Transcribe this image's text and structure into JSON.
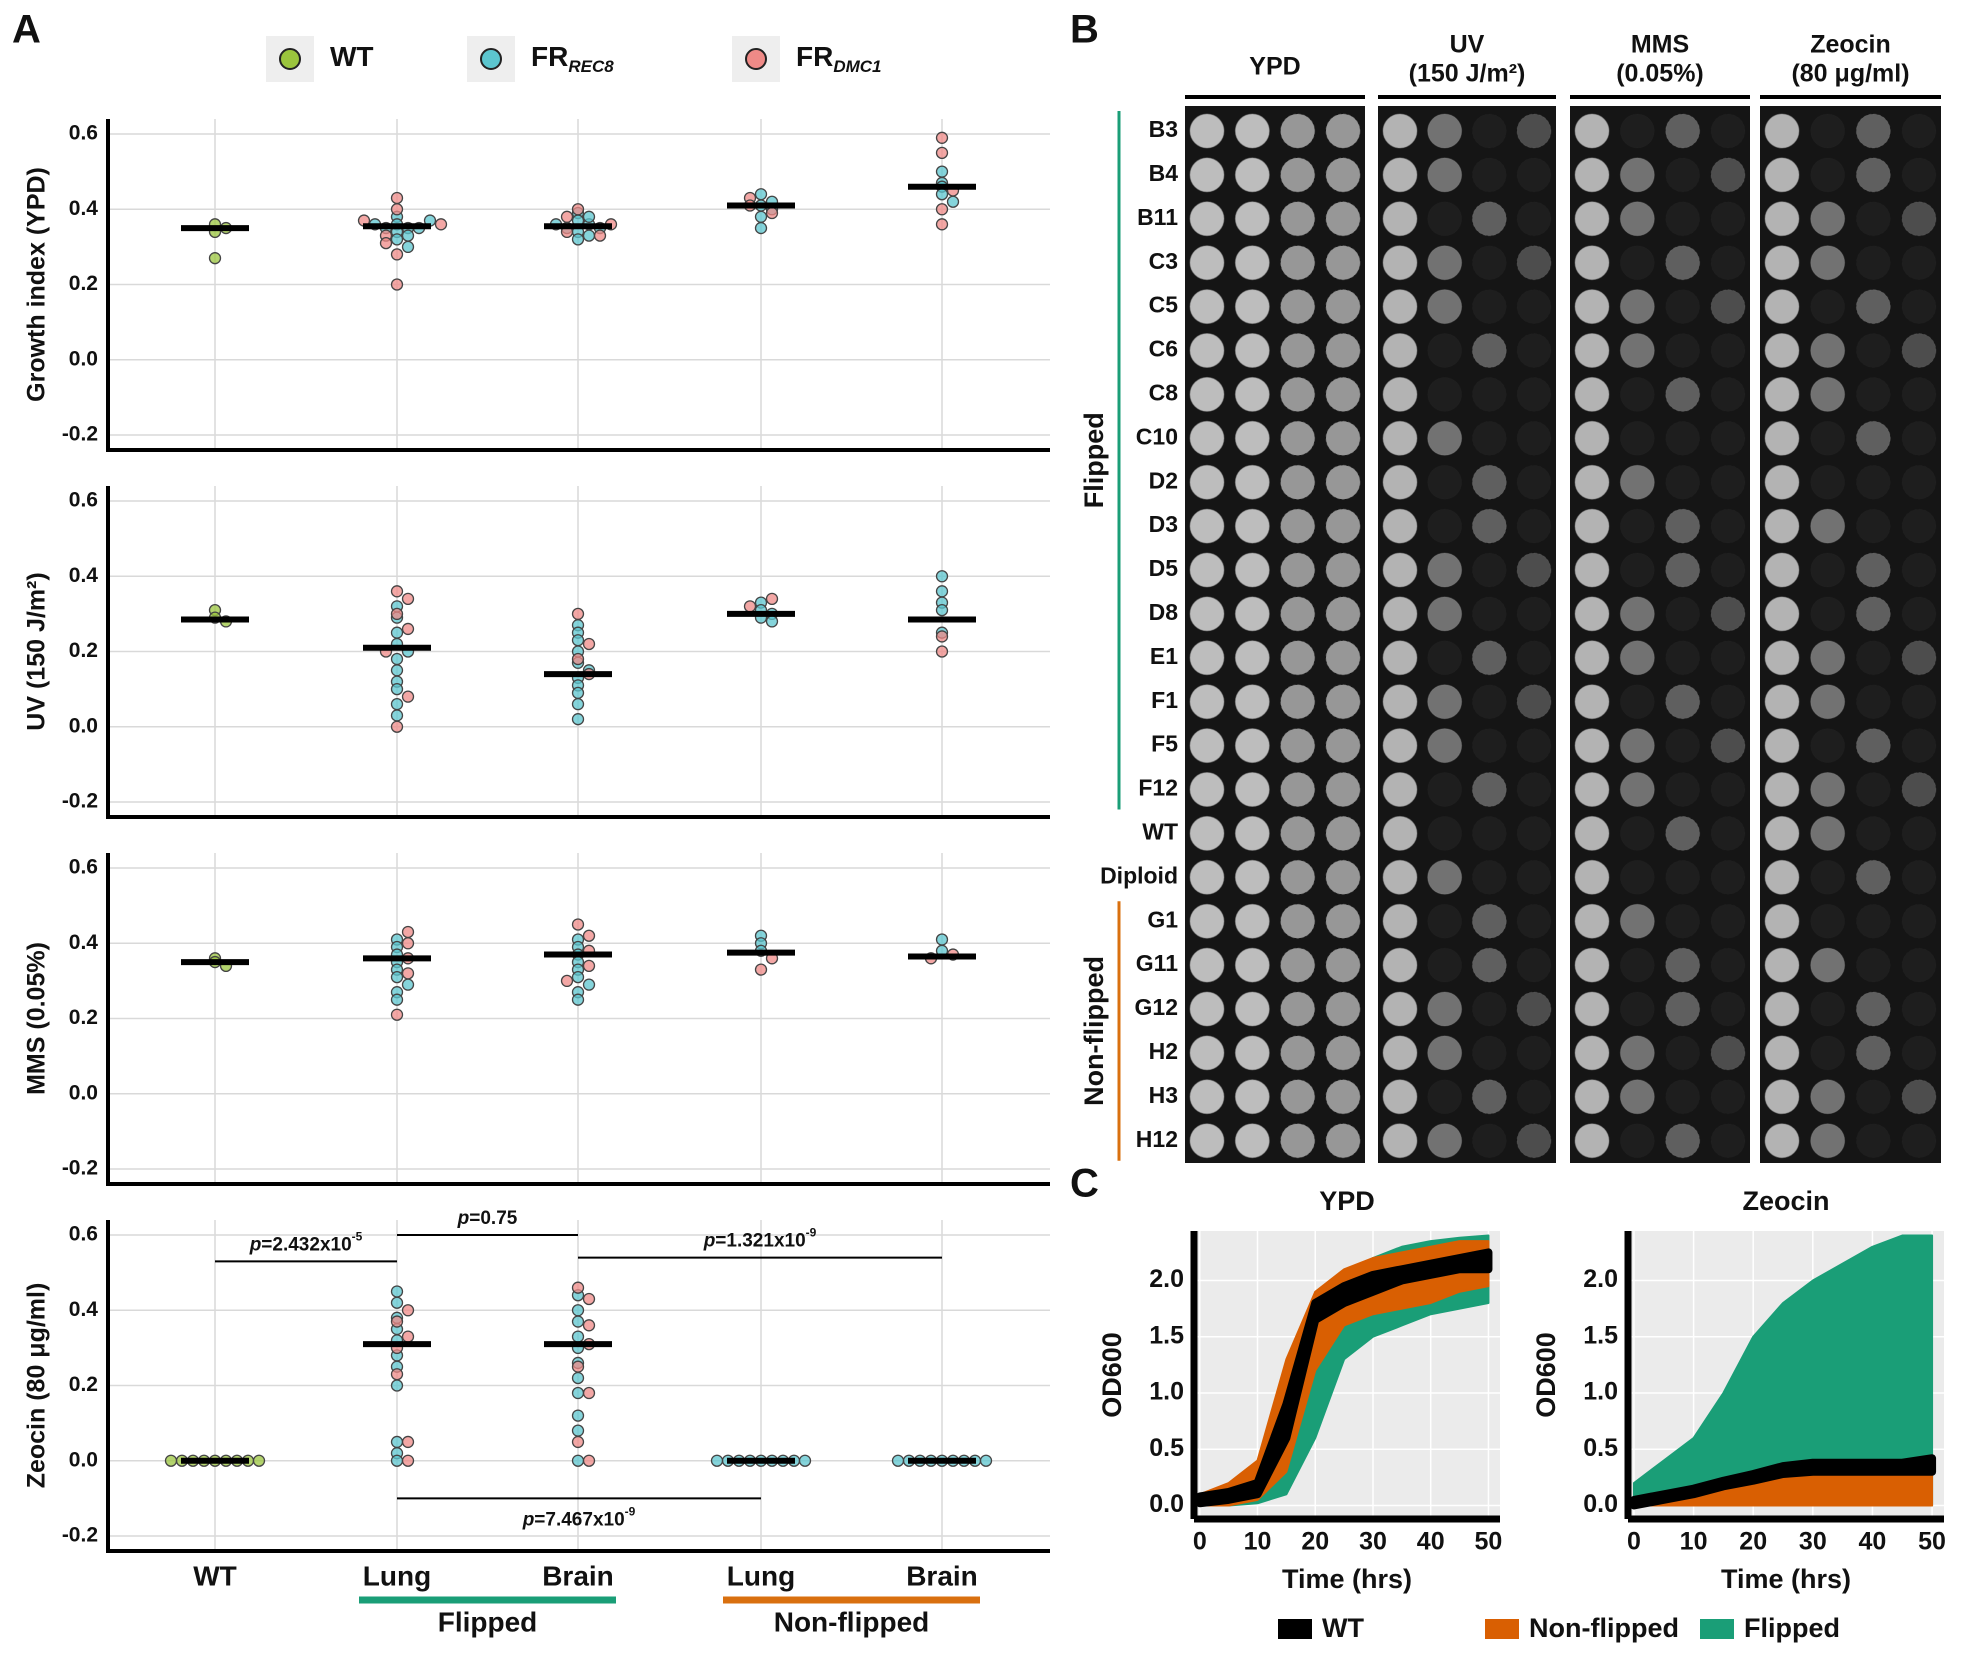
{
  "panel_labels": [
    "A",
    "B",
    "C"
  ],
  "chart_data": [
    {
      "type": "dot",
      "series": [
        {
          "name": "WT",
          "color": "#9bc53d"
        },
        {
          "name": "FR",
          "subscript": "REC8",
          "color": "#5cc6cf"
        },
        {
          "name": "FR",
          "subscript": "DMC1",
          "color": "#ef8a87"
        }
      ],
      "categories": [
        "WT",
        "Lung",
        "Brain",
        "Lung",
        "Brain"
      ],
      "groups": [
        {
          "name": "Flipped",
          "color": "#1a9e77"
        },
        {
          "name": "Non-flipped",
          "color": "#d9700f"
        }
      ],
      "ylim": [
        -0.24,
        0.64
      ],
      "yticks": [
        -0.2,
        {
          "value": 0,
          "label": "0.0"
        },
        0.2,
        0.4,
        0.6
      ],
      "grid": true,
      "panels": [
        {
          "ylabel": "Growth index (YPD)",
          "medians": [
            0.35,
            0.355,
            0.355,
            0.41,
            0.46
          ],
          "values": [
            [
              [
                0.36,
                0.35,
                0.34,
                0.27
              ],
              [],
              [],
              [],
              []
            ],
            [
              [],
              [
                0.38,
                0.36,
                0.35,
                0.35,
                0.35,
                0.34,
                0.33,
                0.32,
                0.3,
                0.36,
                0.37
              ],
              [
                0.39,
                0.37,
                0.36,
                0.35,
                0.35,
                0.34,
                0.33,
                0.32,
                0.38,
                0.36
              ],
              [
                0.44,
                0.42,
                0.41,
                0.4,
                0.38,
                0.35
              ],
              [
                0.5,
                0.47,
                0.46,
                0.44,
                0.42
              ]
            ],
            [
              [],
              [
                0.43,
                0.4,
                0.37,
                0.36,
                0.33,
                0.31,
                0.28,
                0.2
              ],
              [
                0.4,
                0.38,
                0.36,
                0.34,
                0.33
              ],
              [
                0.43,
                0.41,
                0.39
              ],
              [
                0.59,
                0.55,
                0.45,
                0.4,
                0.36
              ]
            ]
          ]
        },
        {
          "ylabel": "UV (150 J/m²)",
          "medians": [
            0.285,
            0.21,
            0.14,
            0.3,
            0.285
          ],
          "values": [
            [
              [
                0.31,
                0.29,
                0.28
              ],
              [],
              [],
              [],
              []
            ],
            [
              [],
              [
                0.32,
                0.29,
                0.25,
                0.22,
                0.2,
                0.18,
                0.15,
                0.12,
                0.1,
                0.06,
                0.03
              ],
              [
                0.27,
                0.25,
                0.23,
                0.2,
                0.17,
                0.15,
                0.13,
                0.11,
                0.09,
                0.06,
                0.02
              ],
              [
                0.33,
                0.31,
                0.3,
                0.29,
                0.28
              ],
              [
                0.4,
                0.36,
                0.33,
                0.31,
                0.25
              ]
            ],
            [
              [],
              [
                0.36,
                0.34,
                0.3,
                0.26,
                0.2,
                0.08,
                0
              ],
              [
                0.3,
                0.22,
                0.18,
                0.14
              ],
              [
                0.34,
                0.32
              ],
              [
                0.24,
                0.2
              ]
            ]
          ]
        },
        {
          "ylabel": "MMS (0.05%)",
          "medians": [
            0.35,
            0.36,
            0.37,
            0.375,
            0.365
          ],
          "values": [
            [
              [
                0.36,
                0.35,
                0.34
              ],
              [],
              [],
              [],
              []
            ],
            [
              [],
              [
                0.41,
                0.39,
                0.37,
                0.35,
                0.33,
                0.31,
                0.29,
                0.27,
                0.25
              ],
              [
                0.41,
                0.39,
                0.37,
                0.35,
                0.33,
                0.31,
                0.29,
                0.27,
                0.25
              ],
              [
                0.42,
                0.4,
                0.38
              ],
              [
                0.41,
                0.38
              ]
            ],
            [
              [],
              [
                0.43,
                0.4,
                0.36,
                0.32,
                0.21
              ],
              [
                0.45,
                0.42,
                0.38,
                0.34,
                0.3
              ],
              [
                0.36,
                0.33
              ],
              [
                0.37,
                0.36
              ]
            ]
          ]
        },
        {
          "ylabel": "Zeocin (80 μg/ml)",
          "medians": [
            0,
            0.31,
            0.31,
            0,
            0
          ],
          "values": [
            [
              [
                0,
                0,
                0,
                0,
                0,
                0,
                0,
                0,
                0
              ],
              [],
              [],
              [],
              []
            ],
            [
              [],
              [
                0.45,
                0.42,
                0.38,
                0.35,
                0.32,
                0.28,
                0.25,
                0.2,
                0.05,
                0.02,
                0
              ],
              [
                0.44,
                0.4,
                0.37,
                0.33,
                0.3,
                0.26,
                0.22,
                0.18,
                0.12,
                0.08,
                0
              ],
              [
                0,
                0,
                0,
                0,
                0,
                0,
                0,
                0,
                0
              ],
              [
                0,
                0,
                0,
                0,
                0,
                0,
                0,
                0,
                0
              ]
            ],
            [
              [],
              [
                0.4,
                0.37,
                0.33,
                0.3,
                0.23,
                0.05,
                0
              ],
              [
                0.46,
                0.43,
                0.36,
                0.31,
                0.25,
                0.18,
                0.05,
                0
              ],
              [],
              []
            ]
          ],
          "annotations": [
            {
              "label": "p",
              "text": "=2.432x10",
              "exponent": "-5",
              "y": 0.53
            },
            {
              "label": "p",
              "text": "=0.75",
              "y": 0.6
            },
            {
              "label": "p",
              "text": "=1.321x10",
              "exponent": "-9",
              "y": 0.54
            },
            {
              "label": "p",
              "text": "=7.467x10",
              "exponent": "-9",
              "y": -0.1
            }
          ]
        }
      ]
    },
    {
      "type": "area",
      "series": [
        {
          "name": "WT",
          "color": "#000000"
        },
        {
          "name": "Non-flipped",
          "color": "#d95f02"
        },
        {
          "name": "Flipped",
          "color": "#1a9e77"
        }
      ],
      "x": [
        0,
        5,
        10,
        15,
        20,
        25,
        30,
        35,
        40,
        45,
        50
      ],
      "xlim": [
        -1,
        52
      ],
      "xticks": [
        0,
        10,
        20,
        30,
        40,
        50
      ],
      "ylim": [
        -0.12,
        2.44
      ],
      "yticks": [
        {
          "value": 0,
          "label": "0.0"
        },
        0.5,
        {
          "value": 1,
          "label": "1.0"
        },
        1.5,
        {
          "value": 2,
          "label": "2.0"
        }
      ],
      "xlabel": "Time (hrs)",
      "ylabel": "OD600",
      "grid": true,
      "panels": [
        {
          "title": "YPD",
          "bands": [
            {
              "lower": [
                0.02,
                0.05,
                0.1,
                0.6,
                1.65,
                1.8,
                1.9,
                2.0,
                2.05,
                2.1,
                2.1
              ],
              "upper": [
                0.08,
                0.12,
                0.2,
                0.9,
                1.8,
                1.95,
                2.05,
                2.1,
                2.15,
                2.2,
                2.25
              ]
            },
            {
              "lower": [
                0,
                0,
                0.05,
                0.3,
                1.2,
                1.6,
                1.7,
                1.75,
                1.8,
                1.9,
                1.95
              ],
              "upper": [
                0.1,
                0.2,
                0.4,
                1.3,
                1.9,
                2.1,
                2.2,
                2.25,
                2.3,
                2.35,
                2.35
              ]
            },
            {
              "lower": [
                0,
                0,
                0.02,
                0.1,
                0.6,
                1.3,
                1.5,
                1.6,
                1.7,
                1.75,
                1.8
              ],
              "upper": [
                0.1,
                0.15,
                0.3,
                1.0,
                1.85,
                2.05,
                2.2,
                2.3,
                2.35,
                2.38,
                2.4
              ]
            }
          ]
        },
        {
          "title": "Zeocin",
          "bands": [
            {
              "lower": [
                0,
                0.05,
                0.1,
                0.17,
                0.22,
                0.28,
                0.3,
                0.3,
                0.3,
                0.3,
                0.3
              ],
              "upper": [
                0.05,
                0.1,
                0.15,
                0.22,
                0.28,
                0.35,
                0.38,
                0.38,
                0.38,
                0.38,
                0.42
              ]
            },
            {
              "lower": [
                0,
                0,
                0,
                0,
                0,
                0,
                0,
                0,
                0,
                0,
                0
              ],
              "upper": [
                0.05,
                0.1,
                0.15,
                0.2,
                0.25,
                0.28,
                0.3,
                0.3,
                0.3,
                0.3,
                0.32
              ]
            },
            {
              "lower": [
                0,
                0,
                0,
                0,
                0,
                0,
                0,
                0,
                0,
                0,
                0
              ],
              "upper": [
                0.2,
                0.4,
                0.6,
                1.0,
                1.5,
                1.8,
                2.0,
                2.15,
                2.3,
                2.4,
                2.4
              ]
            }
          ]
        }
      ]
    }
  ],
  "spot_assay": {
    "columns": [
      {
        "title": "YPD"
      },
      {
        "title": "UV",
        "subtitle": "(150 J/m²)"
      },
      {
        "title": "MMS",
        "subtitle": "(0.05%)"
      },
      {
        "title": "Zeocin",
        "subtitle": "(80 μg/ml)"
      }
    ],
    "row_groups": [
      {
        "name": "Flipped",
        "color": "#1a9e77",
        "rows": [
          "B3",
          "B4",
          "B11",
          "C3",
          "C5",
          "C6",
          "C8",
          "C10",
          "D2",
          "D3",
          "D5",
          "D8",
          "E1",
          "F1",
          "F5",
          "F12"
        ]
      },
      {
        "rows": [
          "WT",
          "Diploid"
        ]
      },
      {
        "name": "Non-flipped",
        "color": "#d9700f",
        "rows": [
          "G1",
          "G11",
          "G12",
          "H2",
          "H3",
          "H12"
        ]
      }
    ]
  }
}
